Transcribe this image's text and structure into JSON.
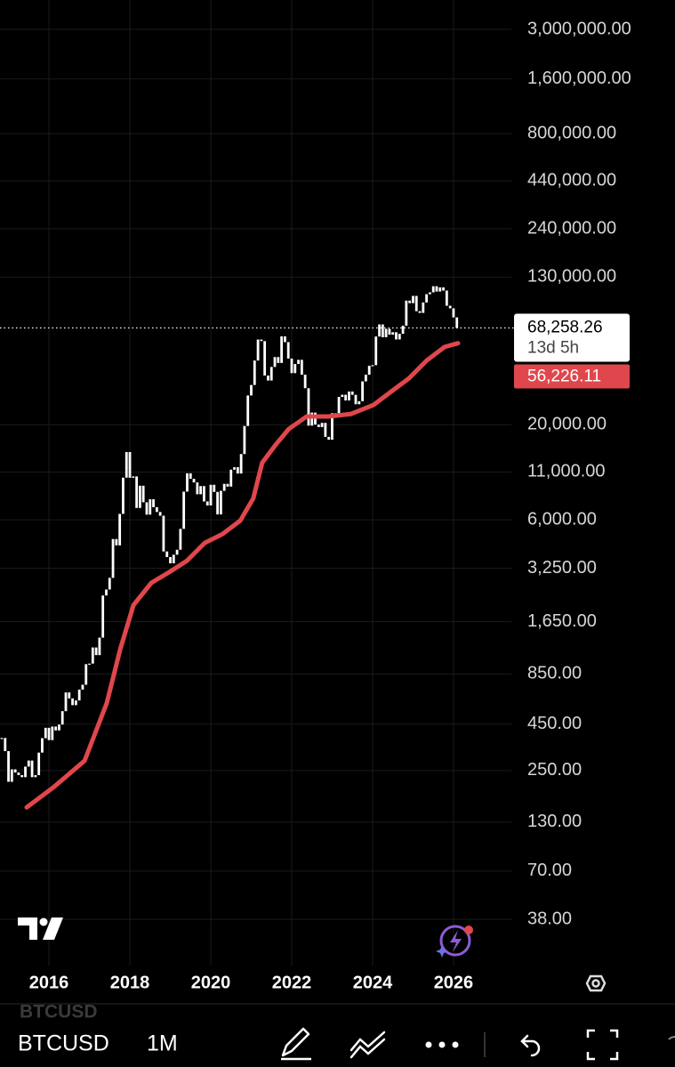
{
  "chart_data": {
    "type": "candlestick",
    "log_scale": true,
    "grid": true,
    "xlim": [
      2014.79,
      2027.43
    ],
    "xticks": [
      2016,
      2018,
      2020,
      2022,
      2024,
      2026
    ],
    "ylim": [
      21.14,
      4352000
    ],
    "yticks": [
      {
        "value": 3000000,
        "label": "3,000,000.00"
      },
      {
        "value": 1600000,
        "label": "1,600,000.00"
      },
      {
        "value": 800000,
        "label": "800,000.00"
      },
      {
        "value": 440000,
        "label": "440,000.00"
      },
      {
        "value": 240000,
        "label": "240,000.00"
      },
      {
        "value": 130000,
        "label": "130,000.00"
      },
      {
        "value": 20000,
        "label": "20,000.00"
      },
      {
        "value": 11000,
        "label": "11,000.00"
      },
      {
        "value": 6000,
        "label": "6,000.00"
      },
      {
        "value": 3250,
        "label": "3,250.00"
      },
      {
        "value": 1650,
        "label": "1,650.00"
      },
      {
        "value": 850,
        "label": "850.00"
      },
      {
        "value": 450,
        "label": "450.00"
      },
      {
        "value": 250,
        "label": "250.00"
      },
      {
        "value": 130,
        "label": "130.00"
      },
      {
        "value": 70,
        "label": "70.00"
      },
      {
        "value": 38,
        "label": "38.00"
      }
    ],
    "last_price": {
      "value": 68258.26,
      "label": "68,258.26"
    },
    "countdown": "13d 5h",
    "ma_last": {
      "value": 56226.11,
      "label": "56,226.11"
    },
    "series": [
      {
        "name": "BTCUSD",
        "color": "#ffffff",
        "x": [
          2014.833,
          2014.917,
          2015.0,
          2015.083,
          2015.167,
          2015.25,
          2015.333,
          2015.417,
          2015.5,
          2015.583,
          2015.667,
          2015.75,
          2015.833,
          2015.917,
          2016.0,
          2016.083,
          2016.167,
          2016.25,
          2016.333,
          2016.417,
          2016.5,
          2016.583,
          2016.667,
          2016.75,
          2016.833,
          2016.917,
          2017.0,
          2017.083,
          2017.167,
          2017.25,
          2017.333,
          2017.417,
          2017.5,
          2017.583,
          2017.667,
          2017.75,
          2017.833,
          2017.917,
          2018.0,
          2018.083,
          2018.167,
          2018.25,
          2018.333,
          2018.417,
          2018.5,
          2018.583,
          2018.667,
          2018.75,
          2018.833,
          2018.917,
          2019.0,
          2019.083,
          2019.167,
          2019.25,
          2019.333,
          2019.417,
          2019.5,
          2019.583,
          2019.667,
          2019.75,
          2019.833,
          2019.917,
          2020.0,
          2020.083,
          2020.167,
          2020.25,
          2020.333,
          2020.417,
          2020.5,
          2020.583,
          2020.667,
          2020.75,
          2020.833,
          2020.917,
          2021.0,
          2021.083,
          2021.167,
          2021.25,
          2021.333,
          2021.417,
          2021.5,
          2021.583,
          2021.667,
          2021.75,
          2021.833,
          2021.917,
          2022.0,
          2022.083,
          2022.167,
          2022.25,
          2022.333,
          2022.417,
          2022.5,
          2022.583,
          2022.667,
          2022.75,
          2022.833,
          2022.917,
          2023.0,
          2023.083,
          2023.167,
          2023.25,
          2023.333,
          2023.417,
          2023.5,
          2023.583,
          2023.667,
          2023.75,
          2023.833,
          2023.917,
          2024.0,
          2024.083,
          2024.167,
          2024.25,
          2024.333,
          2024.417,
          2024.5,
          2024.583,
          2024.667,
          2024.75,
          2024.833,
          2024.917,
          2025.0,
          2025.083,
          2025.167,
          2025.25,
          2025.333,
          2025.417,
          2025.5,
          2025.583,
          2025.667,
          2025.75,
          2025.833,
          2025.917,
          2026.0,
          2026.083
        ],
        "values": [
          378,
          320,
          217,
          254,
          244,
          236,
          230,
          263,
          284,
          230,
          236,
          314,
          377,
          430,
          368,
          437,
          416,
          448,
          531,
          673,
          624,
          573,
          608,
          698,
          742,
          963,
          970,
          1190,
          1080,
          1348,
          2300,
          2480,
          2875,
          4703,
          4339,
          6468,
          10233,
          14156,
          10221,
          10397,
          6973,
          9240,
          7494,
          6404,
          7780,
          7037,
          6625,
          6318,
          4017,
          3742,
          3457,
          3854,
          4105,
          5350,
          8574,
          10817,
          10085,
          9630,
          8293,
          9199,
          7569,
          7194,
          9350,
          8544,
          6424,
          8658,
          9461,
          9137,
          11323,
          11680,
          10784,
          13804,
          19700,
          28990,
          33114,
          45137,
          58918,
          57750,
          37332,
          35041,
          41626,
          47166,
          43791,
          61318,
          57005,
          46306,
          38483,
          43194,
          45538,
          37714,
          31792,
          19785,
          23336,
          20050,
          19431,
          20495,
          17168,
          16548,
          23139,
          23147,
          28478,
          29268,
          27220,
          30477,
          29230,
          25941,
          26967,
          34667,
          37713,
          42265,
          42582,
          61198,
          71334,
          60637,
          67491,
          62678,
          64619,
          58970,
          63329,
          70215,
          96449,
          93429,
          102405,
          84373,
          82549,
          94207,
          104638,
          107135,
          115758,
          108236,
          114056,
          109556,
          90394,
          87500,
          78000,
          68258.26
        ]
      },
      {
        "type": "line",
        "color": "#e0474c",
        "x": [
          2015.45,
          2016.11,
          2016.88,
          2017.43,
          2017.76,
          2018.09,
          2018.53,
          2018.97,
          2019.41,
          2019.85,
          2020.29,
          2020.73,
          2021.05,
          2021.27,
          2021.6,
          2021.93,
          2022.37,
          2022.92,
          2023.47,
          2024.02,
          2024.46,
          2024.9,
          2025.34,
          2025.78,
          2026.11
        ],
        "values": [
          157,
          202,
          283,
          589,
          1159,
          2037,
          2698,
          3090,
          3573,
          4477,
          5012,
          5943,
          7870,
          12360,
          15490,
          18970,
          22230,
          22230,
          22960,
          25700,
          30480,
          36060,
          45190,
          53580,
          56226.11
        ]
      }
    ]
  },
  "toolbar": {
    "symbol": "BTCUSD",
    "interval": "1M"
  }
}
